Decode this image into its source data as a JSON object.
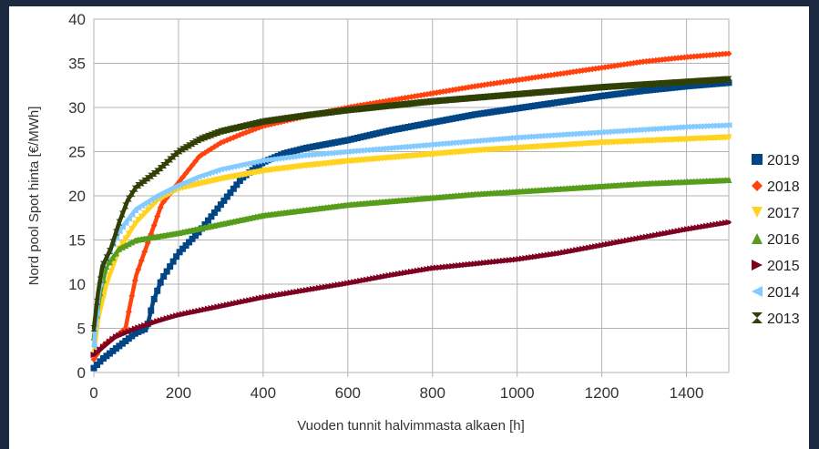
{
  "chart_data": {
    "type": "scatter",
    "title": "",
    "xlabel": "Vuoden tunnit halvimmasta alkaen [h]",
    "ylabel": "Nord pool Spot hinta [€/MWh]",
    "xlim": [
      0,
      1500
    ],
    "ylim": [
      0,
      40
    ],
    "x_ticks": [
      "0",
      "200",
      "400",
      "600",
      "800",
      "1000",
      "1200",
      "1400"
    ],
    "y_ticks": [
      "0",
      "5",
      "10",
      "15",
      "20",
      "25",
      "30",
      "35",
      "40"
    ],
    "grid": true,
    "legend_position": "right",
    "series": [
      {
        "name": "2019",
        "color": "#004586",
        "marker": "square",
        "points": [
          [
            0,
            0.5
          ],
          [
            20,
            1.5
          ],
          [
            60,
            3
          ],
          [
            100,
            4.5
          ],
          [
            125,
            5
          ],
          [
            140,
            8
          ],
          [
            160,
            10.5
          ],
          [
            200,
            13.5
          ],
          [
            250,
            16
          ],
          [
            300,
            19
          ],
          [
            350,
            22
          ],
          [
            400,
            23.8
          ],
          [
            450,
            24.8
          ],
          [
            500,
            25.4
          ],
          [
            600,
            26.3
          ],
          [
            700,
            27.4
          ],
          [
            800,
            28.3
          ],
          [
            900,
            29.2
          ],
          [
            1000,
            29.9
          ],
          [
            1100,
            30.6
          ],
          [
            1200,
            31.3
          ],
          [
            1300,
            31.9
          ],
          [
            1400,
            32.4
          ],
          [
            1500,
            32.8
          ]
        ]
      },
      {
        "name": "2018",
        "color": "#ff420e",
        "marker": "diamond",
        "points": [
          [
            0,
            1.5
          ],
          [
            20,
            3
          ],
          [
            50,
            4
          ],
          [
            75,
            5
          ],
          [
            85,
            7.5
          ],
          [
            100,
            11
          ],
          [
            130,
            15
          ],
          [
            160,
            19
          ],
          [
            200,
            21.5
          ],
          [
            250,
            24.5
          ],
          [
            300,
            26
          ],
          [
            350,
            27
          ],
          [
            400,
            27.9
          ],
          [
            500,
            29
          ],
          [
            600,
            30
          ],
          [
            700,
            30.8
          ],
          [
            800,
            31.6
          ],
          [
            900,
            32.4
          ],
          [
            1000,
            33.1
          ],
          [
            1100,
            33.8
          ],
          [
            1200,
            34.5
          ],
          [
            1300,
            35.2
          ],
          [
            1400,
            35.7
          ],
          [
            1500,
            36.1
          ]
        ]
      },
      {
        "name": "2017",
        "color": "#ffd320",
        "marker": "triangle-down",
        "points": [
          [
            0,
            2
          ],
          [
            10,
            6
          ],
          [
            30,
            10
          ],
          [
            60,
            14
          ],
          [
            100,
            17
          ],
          [
            150,
            19.5
          ],
          [
            200,
            20.8
          ],
          [
            300,
            21.9
          ],
          [
            400,
            22.8
          ],
          [
            500,
            23.4
          ],
          [
            600,
            23.9
          ],
          [
            700,
            24.3
          ],
          [
            800,
            24.7
          ],
          [
            900,
            25.1
          ],
          [
            1000,
            25.4
          ],
          [
            1100,
            25.7
          ],
          [
            1200,
            26
          ],
          [
            1300,
            26.2
          ],
          [
            1400,
            26.4
          ],
          [
            1500,
            26.6
          ]
        ]
      },
      {
        "name": "2016",
        "color": "#579d1c",
        "marker": "triangle-up",
        "points": [
          [
            0,
            4
          ],
          [
            15,
            9
          ],
          [
            30,
            12
          ],
          [
            60,
            14
          ],
          [
            100,
            15
          ],
          [
            200,
            15.8
          ],
          [
            300,
            16.8
          ],
          [
            400,
            17.8
          ],
          [
            500,
            18.4
          ],
          [
            600,
            19
          ],
          [
            700,
            19.4
          ],
          [
            800,
            19.8
          ],
          [
            900,
            20.2
          ],
          [
            1000,
            20.5
          ],
          [
            1100,
            20.8
          ],
          [
            1200,
            21.1
          ],
          [
            1300,
            21.4
          ],
          [
            1400,
            21.6
          ],
          [
            1500,
            21.8
          ]
        ]
      },
      {
        "name": "2015",
        "color": "#7e0021",
        "marker": "triangle-right",
        "points": [
          [
            0,
            2
          ],
          [
            50,
            4
          ],
          [
            100,
            5
          ],
          [
            150,
            5.8
          ],
          [
            200,
            6.5
          ],
          [
            300,
            7.5
          ],
          [
            400,
            8.5
          ],
          [
            500,
            9.3
          ],
          [
            600,
            10.1
          ],
          [
            700,
            11
          ],
          [
            800,
            11.8
          ],
          [
            900,
            12.3
          ],
          [
            1000,
            12.8
          ],
          [
            1100,
            13.5
          ],
          [
            1200,
            14.4
          ],
          [
            1300,
            15.3
          ],
          [
            1400,
            16.2
          ],
          [
            1500,
            17
          ]
        ]
      },
      {
        "name": "2014",
        "color": "#83caff",
        "marker": "triangle-left",
        "points": [
          [
            0,
            3
          ],
          [
            10,
            8
          ],
          [
            20,
            12
          ],
          [
            40,
            14
          ],
          [
            60,
            16
          ],
          [
            100,
            18.5
          ],
          [
            150,
            20
          ],
          [
            200,
            21.2
          ],
          [
            250,
            22.2
          ],
          [
            300,
            23
          ],
          [
            400,
            24
          ],
          [
            500,
            24.6
          ],
          [
            600,
            25
          ],
          [
            700,
            25.4
          ],
          [
            800,
            25.8
          ],
          [
            900,
            26.2
          ],
          [
            1000,
            26.6
          ],
          [
            1100,
            26.9
          ],
          [
            1200,
            27.2
          ],
          [
            1300,
            27.5
          ],
          [
            1400,
            27.8
          ],
          [
            1500,
            28
          ]
        ]
      },
      {
        "name": "2013",
        "color": "#314004",
        "marker": "bowtie",
        "points": [
          [
            0,
            5
          ],
          [
            10,
            9
          ],
          [
            20,
            12
          ],
          [
            40,
            14
          ],
          [
            60,
            17
          ],
          [
            80,
            19.5
          ],
          [
            100,
            21
          ],
          [
            150,
            22.8
          ],
          [
            200,
            25
          ],
          [
            250,
            26.4
          ],
          [
            300,
            27.3
          ],
          [
            400,
            28.4
          ],
          [
            500,
            29.1
          ],
          [
            600,
            29.7
          ],
          [
            700,
            30.2
          ],
          [
            800,
            30.7
          ],
          [
            900,
            31.1
          ],
          [
            1000,
            31.5
          ],
          [
            1100,
            31.9
          ],
          [
            1200,
            32.3
          ],
          [
            1300,
            32.6
          ],
          [
            1400,
            32.9
          ],
          [
            1500,
            33.2
          ]
        ]
      }
    ]
  }
}
